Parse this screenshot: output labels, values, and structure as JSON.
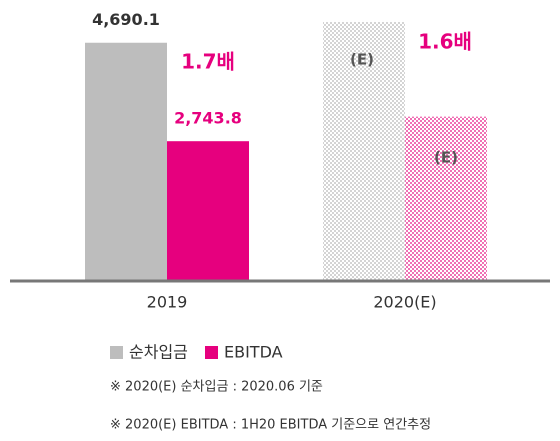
{
  "chart_data": {
    "type": "bar",
    "categories": [
      "2019",
      "2020(E)"
    ],
    "series": [
      {
        "name": "순차입금",
        "color": "#bdbdbd",
        "pattern_color": "#d4d4d4",
        "values": [
          4690.1,
          5100
        ],
        "value_labels": [
          "4,690.1",
          null
        ]
      },
      {
        "name": "EBITDA",
        "color": "#e6007e",
        "pattern_color": "#f070b4",
        "values": [
          2743.8,
          3230
        ],
        "value_labels": [
          "2,743.8",
          null
        ]
      }
    ],
    "patterned": [
      false,
      true
    ],
    "annotations": [
      "1.7배",
      "1.6배",
      "(E)",
      "(E)"
    ],
    "notes": [
      "※ 2020(E) 순차입금 : 2020.06 기준",
      "※ 2020(E) EBITDA : 1H20 EBITDA 기준으로 연간추정"
    ]
  }
}
